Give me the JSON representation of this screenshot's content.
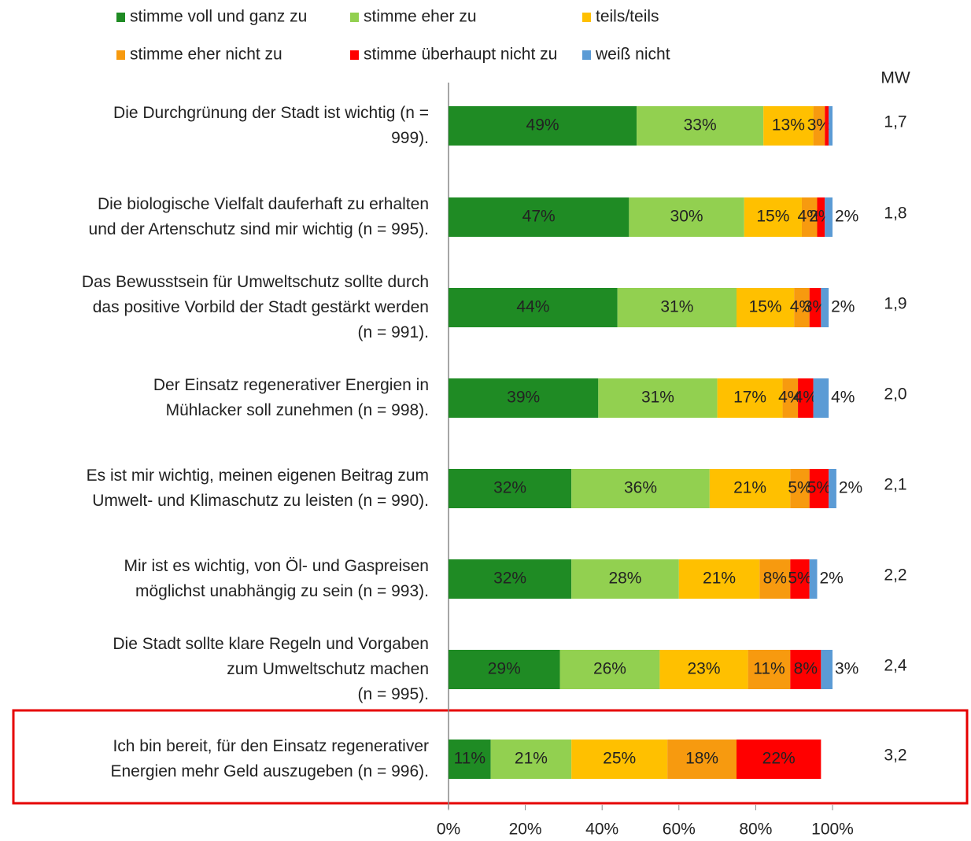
{
  "chart_data": {
    "type": "stacked-bar-horizontal",
    "categories": [
      "Die Durchgrünung der Stadt ist wichtig (n =\n999).",
      "Die biologische Vielfalt dauferhaft zu erhalten\nund der Artenschutz sind mir wichtig (n = 995).",
      "Das Bewusstsein für Umweltschutz sollte durch\ndas positive Vorbild der Stadt gestärkt werden\n(n = 991).",
      "Der Einsatz regenerativer Energien in\nMühlacker soll zunehmen (n = 998).",
      "Es ist mir wichtig, meinen eigenen Beitrag zum\nUmwelt- und Klimaschutz zu leisten (n = 990).",
      "Mir ist es wichtig, von Öl- und Gaspreisen\nmöglichst unabhängig zu sein (n = 993).",
      "Die Stadt sollte klare Regeln und Vorgaben\nzum Umweltschutz machen\n(n = 995).",
      "Ich bin bereit, für den Einsatz regenerativer\nEnergien mehr Geld auszugeben (n = 996)."
    ],
    "series": [
      {
        "name": "stimme voll und ganz zu",
        "color": "#1f8b24",
        "values": [
          49,
          47,
          44,
          39,
          32,
          32,
          29,
          11
        ],
        "value_labels": [
          "49%",
          "47%",
          "44%",
          "39%",
          "32%",
          "32%",
          "29%",
          "11%"
        ]
      },
      {
        "name": "stimme eher zu",
        "color": "#92d050",
        "values": [
          33,
          30,
          31,
          31,
          36,
          28,
          26,
          21
        ],
        "value_labels": [
          "33%",
          "30%",
          "31%",
          "31%",
          "36%",
          "28%",
          "26%",
          "21%"
        ]
      },
      {
        "name": "teils/teils",
        "color": "#ffc000",
        "values": [
          13,
          15,
          15,
          17,
          21,
          21,
          23,
          25
        ],
        "value_labels": [
          "13%",
          "15%",
          "15%",
          "17%",
          "21%",
          "21%",
          "23%",
          "25%"
        ]
      },
      {
        "name": "stimme eher nicht zu",
        "color": "#f79a0f",
        "values": [
          3,
          4,
          4,
          4,
          5,
          8,
          11,
          18
        ],
        "value_labels": [
          "3%",
          "4%",
          "4%",
          "4%",
          "5%",
          "8%",
          "11%",
          "18%"
        ]
      },
      {
        "name": "stimme überhaupt nicht zu",
        "color": "#ff0000",
        "values": [
          1,
          2,
          3,
          4,
          5,
          5,
          8,
          22
        ],
        "value_labels": [
          null,
          "2%",
          "3%",
          "4%",
          "5%",
          "5%",
          "8%",
          "22%"
        ]
      },
      {
        "name": "weiß nicht",
        "color": "#5b9bd5",
        "values": [
          1,
          2,
          2,
          4,
          2,
          2,
          3,
          null
        ],
        "value_labels": [
          null,
          "2%",
          "2%",
          "4%",
          "2%",
          "2%",
          "3%",
          null
        ]
      }
    ],
    "xlim": [
      0,
      100
    ],
    "xticks": [
      {
        "value": 0,
        "label": "0%"
      },
      {
        "value": 20,
        "label": "20%"
      },
      {
        "value": 40,
        "label": "40%"
      },
      {
        "value": 60,
        "label": "60%"
      },
      {
        "value": 80,
        "label": "80%"
      },
      {
        "value": 100,
        "label": "100%"
      }
    ],
    "mw": {
      "title": "MW",
      "values": [
        1.7,
        1.8,
        1.9,
        2.0,
        2.1,
        2.2,
        2.4,
        3.2
      ],
      "value_labels": [
        "1,7",
        "1,8",
        "1,9",
        "2,0",
        "2,1",
        "2,2",
        "2,4",
        "3,2"
      ]
    }
  }
}
